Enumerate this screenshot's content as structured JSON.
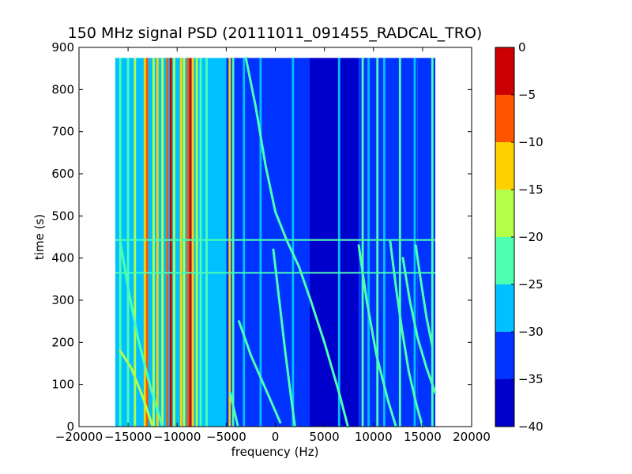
{
  "chart_data": {
    "type": "heatmap",
    "title": "150 MHz signal PSD (20111011_091455_RADCAL_TRO)",
    "xlabel": "frequency (Hz)",
    "ylabel": "time (s)",
    "xlim": [
      -20000,
      20000
    ],
    "ylim": [
      0,
      900
    ],
    "x_ticks": [
      -20000,
      -15000,
      -10000,
      -5000,
      0,
      5000,
      10000,
      15000,
      20000
    ],
    "y_ticks": [
      0,
      100,
      200,
      300,
      400,
      500,
      600,
      700,
      800,
      900
    ],
    "data_extent": {
      "x": [
        -16300,
        16300
      ],
      "y": [
        0,
        875
      ]
    },
    "colorbar": {
      "ticks": [
        0,
        -5,
        -10,
        -15,
        -20,
        -25,
        -30,
        -35,
        -40
      ],
      "levels": [
        {
          "from": -40,
          "to": -35,
          "color": "#0000cd"
        },
        {
          "from": -35,
          "to": -30,
          "color": "#0033ff"
        },
        {
          "from": -30,
          "to": -25,
          "color": "#00c0ff"
        },
        {
          "from": -25,
          "to": -20,
          "color": "#4dffb0"
        },
        {
          "from": -20,
          "to": -15,
          "color": "#b4ff48"
        },
        {
          "from": -15,
          "to": -10,
          "color": "#ffd000"
        },
        {
          "from": -10,
          "to": -5,
          "color": "#ff5500"
        },
        {
          "from": -5,
          "to": 0,
          "color": "#cc0000"
        }
      ]
    },
    "regions": [
      {
        "x": [
          -16300,
          -5000
        ],
        "level": -27
      },
      {
        "x": [
          -5000,
          3500
        ],
        "level": -33
      },
      {
        "x": [
          3500,
          8500
        ],
        "level": -36
      },
      {
        "x": [
          8500,
          14500
        ],
        "level": -34
      },
      {
        "x": [
          14500,
          16300
        ],
        "level": -32
      }
    ],
    "vertical_lines": [
      {
        "x": -15800,
        "level": -22
      },
      {
        "x": -15000,
        "level": -22
      },
      {
        "x": -14300,
        "level": -18
      },
      {
        "x": -13300,
        "level": -12
      },
      {
        "x": -13050,
        "level": -7
      },
      {
        "x": -12400,
        "level": -18
      },
      {
        "x": -12000,
        "level": -12
      },
      {
        "x": -11500,
        "level": -17
      },
      {
        "x": -11000,
        "level": -7
      },
      {
        "x": -10650,
        "level": -3
      },
      {
        "x": -10300,
        "level": -17
      },
      {
        "x": -9600,
        "level": -12
      },
      {
        "x": -9300,
        "level": -17
      },
      {
        "x": -8900,
        "level": -7
      },
      {
        "x": -8650,
        "level": -3
      },
      {
        "x": -8400,
        "level": -12
      },
      {
        "x": -8000,
        "level": -18
      },
      {
        "x": -7600,
        "level": -22
      },
      {
        "x": -7000,
        "level": -22
      },
      {
        "x": -4650,
        "level": -12
      },
      {
        "x": -4300,
        "level": -22
      },
      {
        "x": -3200,
        "level": -27
      },
      {
        "x": -1500,
        "level": -27
      },
      {
        "x": 1800,
        "level": -27
      },
      {
        "x": 6500,
        "level": -27
      },
      {
        "x": 8900,
        "level": -24
      },
      {
        "x": 9500,
        "level": -27
      },
      {
        "x": 10400,
        "level": -24
      },
      {
        "x": 11100,
        "level": -27
      },
      {
        "x": 12700,
        "level": -22
      },
      {
        "x": 14200,
        "level": -27
      },
      {
        "x": 16000,
        "level": -22
      }
    ],
    "horizontal_lines": [
      {
        "y": 365,
        "level": -22
      },
      {
        "y": 443,
        "level": -22
      }
    ],
    "drift_traces": [
      {
        "level": -17,
        "points": [
          [
            -15800,
            180
          ],
          [
            -14700,
            140
          ],
          [
            -13500,
            70
          ],
          [
            -12500,
            0
          ]
        ]
      },
      {
        "level": -20,
        "points": [
          [
            -15800,
            440
          ],
          [
            -15000,
            330
          ],
          [
            -14000,
            210
          ],
          [
            -12800,
            100
          ],
          [
            -11500,
            0
          ]
        ]
      },
      {
        "level": -22,
        "points": [
          [
            -4600,
            80
          ],
          [
            -4200,
            40
          ],
          [
            -3800,
            0
          ]
        ]
      },
      {
        "level": -24,
        "points": [
          [
            -3700,
            250
          ],
          [
            -2500,
            170
          ],
          [
            -1000,
            90
          ],
          [
            500,
            10
          ]
        ]
      },
      {
        "level": -22,
        "points": [
          [
            -3000,
            875
          ],
          [
            -2000,
            760
          ],
          [
            -1000,
            620
          ],
          [
            0,
            510
          ],
          [
            1200,
            440
          ],
          [
            2400,
            380
          ],
          [
            3600,
            300
          ],
          [
            5000,
            200
          ],
          [
            6500,
            80
          ],
          [
            7400,
            0
          ]
        ]
      },
      {
        "level": -24,
        "points": [
          [
            -200,
            420
          ],
          [
            400,
            300
          ],
          [
            1000,
            180
          ],
          [
            1600,
            70
          ],
          [
            2000,
            0
          ]
        ]
      },
      {
        "level": -24,
        "points": [
          [
            8500,
            430
          ],
          [
            9300,
            300
          ],
          [
            10300,
            170
          ],
          [
            11500,
            60
          ],
          [
            12300,
            0
          ]
        ]
      },
      {
        "level": -22,
        "points": [
          [
            11700,
            440
          ],
          [
            12300,
            330
          ],
          [
            12900,
            230
          ],
          [
            13600,
            130
          ],
          [
            14400,
            50
          ],
          [
            15000,
            0
          ]
        ]
      },
      {
        "level": -20,
        "points": [
          [
            13000,
            400
          ],
          [
            13700,
            300
          ],
          [
            14500,
            210
          ],
          [
            15400,
            140
          ],
          [
            16300,
            80
          ]
        ]
      },
      {
        "level": -22,
        "points": [
          [
            14300,
            430
          ],
          [
            14800,
            350
          ],
          [
            15400,
            260
          ],
          [
            16000,
            190
          ]
        ]
      }
    ]
  }
}
